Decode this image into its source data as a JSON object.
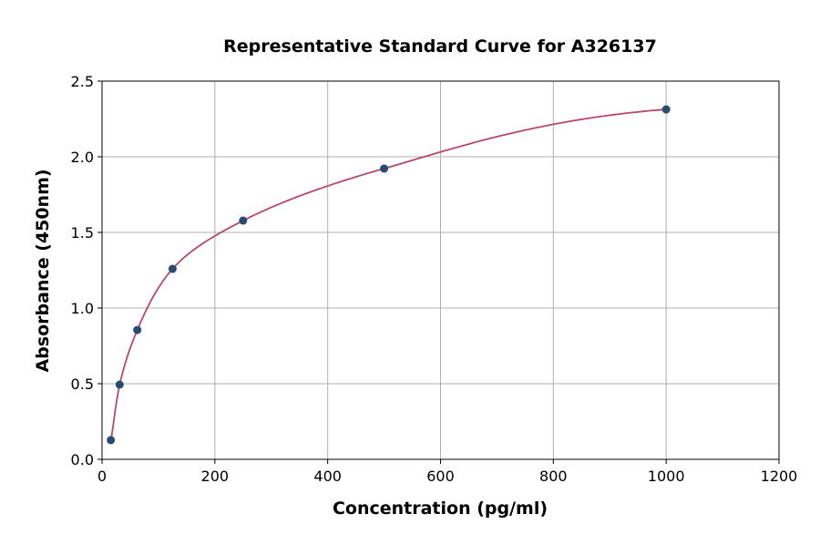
{
  "chart_data": {
    "type": "scatter",
    "title": "Representative Standard Curve for A326137",
    "xlabel": "Concentration (pg/ml)",
    "ylabel": "Absorbance (450nm)",
    "xlim": [
      0,
      1200
    ],
    "ylim": [
      0,
      2.5
    ],
    "xticks": [
      0,
      200,
      400,
      600,
      800,
      1000,
      1200
    ],
    "yticks": [
      0.0,
      0.5,
      1.0,
      1.5,
      2.0,
      2.5
    ],
    "ytick_labels": [
      "0.0",
      "0.5",
      "1.0",
      "1.5",
      "2.0",
      "2.5"
    ],
    "grid": true,
    "points": [
      {
        "x": 15.6,
        "y": 0.127
      },
      {
        "x": 31.25,
        "y": 0.494
      },
      {
        "x": 62.5,
        "y": 0.855
      },
      {
        "x": 125,
        "y": 1.259
      },
      {
        "x": 250,
        "y": 1.578
      },
      {
        "x": 500,
        "y": 1.922
      },
      {
        "x": 1000,
        "y": 2.313
      }
    ],
    "colors": {
      "points": "#2b4a6f",
      "curve": "#b5496d",
      "grid": "#b0b0b0"
    }
  }
}
